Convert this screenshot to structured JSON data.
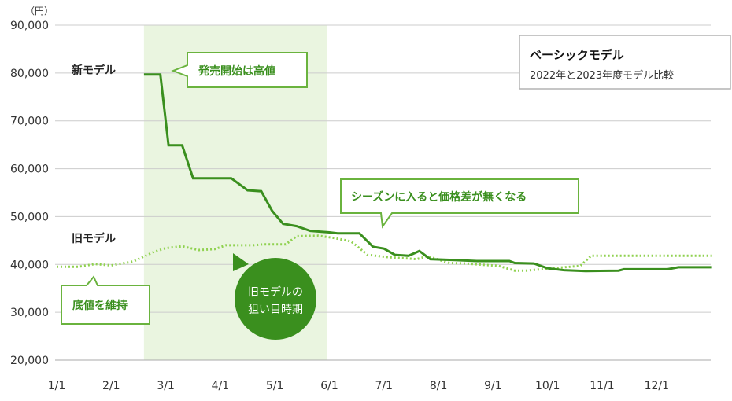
{
  "chart_data": {
    "type": "line",
    "title": "ベーシックモデル",
    "subtitle": "2022年と2023年度モデル比較",
    "y_unit": "（円）",
    "ylim": [
      20000,
      90000
    ],
    "y_ticks": [
      20000,
      30000,
      40000,
      50000,
      60000,
      70000,
      80000,
      90000
    ],
    "y_tick_labels": [
      "20,000",
      "30,000",
      "40,000",
      "50,000",
      "60,000",
      "70,000",
      "80,000",
      "90,000"
    ],
    "x_ticks": [
      "1/1",
      "2/1",
      "3/1",
      "4/1",
      "5/1",
      "6/1",
      "7/1",
      "8/1",
      "9/1",
      "10/1",
      "11/1",
      "12/1"
    ],
    "grid": true,
    "highlight_period": {
      "from": 2.6,
      "to": 5.95
    },
    "series": [
      {
        "name": "新モデル",
        "color": "#3a8f1e",
        "style": "solid",
        "points": [
          [
            2.6,
            79700
          ],
          [
            2.9,
            79700
          ],
          [
            3.05,
            64900
          ],
          [
            3.3,
            64900
          ],
          [
            3.5,
            58000
          ],
          [
            4.2,
            58000
          ],
          [
            4.5,
            55500
          ],
          [
            4.75,
            55300
          ],
          [
            4.95,
            51200
          ],
          [
            5.15,
            48500
          ],
          [
            5.4,
            48000
          ],
          [
            5.65,
            47000
          ],
          [
            6.0,
            46700
          ],
          [
            6.15,
            46500
          ],
          [
            6.55,
            46500
          ],
          [
            6.8,
            43700
          ],
          [
            7.0,
            43300
          ],
          [
            7.2,
            42000
          ],
          [
            7.45,
            41800
          ],
          [
            7.65,
            42800
          ],
          [
            7.85,
            41100
          ],
          [
            8.3,
            40900
          ],
          [
            8.7,
            40700
          ],
          [
            9.3,
            40700
          ],
          [
            9.4,
            40300
          ],
          [
            9.75,
            40200
          ],
          [
            10.0,
            39200
          ],
          [
            10.3,
            38800
          ],
          [
            10.7,
            38600
          ],
          [
            11.3,
            38700
          ],
          [
            11.4,
            39000
          ],
          [
            12.2,
            39000
          ],
          [
            12.4,
            39400
          ],
          [
            13.0,
            39400
          ]
        ]
      },
      {
        "name": "旧モデル",
        "color": "#8fd14f",
        "style": "dotted",
        "points": [
          [
            1.0,
            39500
          ],
          [
            1.4,
            39500
          ],
          [
            1.7,
            40100
          ],
          [
            2.0,
            39800
          ],
          [
            2.4,
            40600
          ],
          [
            2.8,
            42700
          ],
          [
            3.0,
            43400
          ],
          [
            3.3,
            43800
          ],
          [
            3.6,
            43000
          ],
          [
            3.9,
            43200
          ],
          [
            4.1,
            44000
          ],
          [
            4.6,
            44000
          ],
          [
            4.8,
            44200
          ],
          [
            5.2,
            44200
          ],
          [
            5.4,
            45900
          ],
          [
            5.8,
            46000
          ],
          [
            6.1,
            45500
          ],
          [
            6.4,
            44800
          ],
          [
            6.7,
            42000
          ],
          [
            7.1,
            41500
          ],
          [
            7.6,
            41100
          ],
          [
            7.8,
            41700
          ],
          [
            8.2,
            40300
          ],
          [
            8.5,
            40200
          ],
          [
            9.1,
            39700
          ],
          [
            9.4,
            38700
          ],
          [
            9.6,
            38700
          ],
          [
            9.9,
            39000
          ],
          [
            10.3,
            39400
          ],
          [
            10.6,
            39700
          ],
          [
            10.8,
            41800
          ],
          [
            13.0,
            41800
          ]
        ]
      }
    ],
    "annotations": [
      {
        "id": "launch",
        "text": "発売開始は高値"
      },
      {
        "id": "season",
        "text": "シーズンに入ると価格差が無くなる"
      },
      {
        "id": "floor",
        "text": "底値を維持"
      },
      {
        "id": "target",
        "lines": [
          "旧モデルの",
          "狙い目時期"
        ]
      }
    ]
  }
}
